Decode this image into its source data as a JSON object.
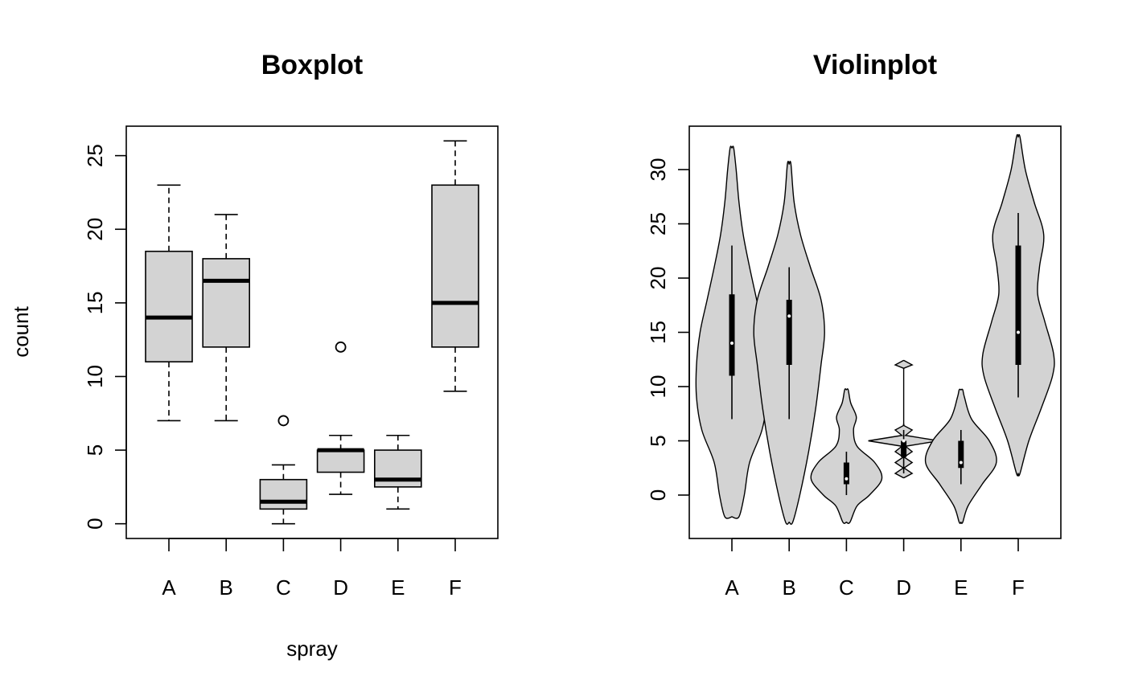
{
  "chart_data": [
    {
      "type": "boxplot",
      "title": "Boxplot",
      "xlabel": "spray",
      "ylabel": "count",
      "categories": [
        "A",
        "B",
        "C",
        "D",
        "E",
        "F"
      ],
      "yticks": [
        0,
        5,
        10,
        15,
        20,
        25
      ],
      "ylim": [
        -1,
        27
      ],
      "grid": false,
      "boxes": [
        {
          "name": "A",
          "min": 7,
          "q1": 11,
          "median": 14,
          "q3": 18.5,
          "max": 23,
          "outliers": []
        },
        {
          "name": "B",
          "min": 7,
          "q1": 12,
          "median": 16.5,
          "q3": 18,
          "max": 21,
          "outliers": []
        },
        {
          "name": "C",
          "min": 0,
          "q1": 1,
          "median": 1.5,
          "q3": 3,
          "max": 4,
          "outliers": [
            7
          ]
        },
        {
          "name": "D",
          "min": 2,
          "q1": 3.5,
          "median": 5,
          "q3": 5,
          "max": 6,
          "outliers": [
            12
          ]
        },
        {
          "name": "E",
          "min": 1,
          "q1": 2.5,
          "median": 3,
          "q3": 5,
          "max": 6,
          "outliers": []
        },
        {
          "name": "F",
          "min": 9,
          "q1": 12,
          "median": 15,
          "q3": 23,
          "max": 26,
          "outliers": []
        }
      ],
      "colors": {
        "fill": "#d3d3d3",
        "stroke": "#000000"
      }
    },
    {
      "type": "violin",
      "title": "Violinplot",
      "xlabel": "",
      "ylabel": "",
      "categories": [
        "A",
        "B",
        "C",
        "D",
        "E",
        "F"
      ],
      "yticks": [
        0,
        5,
        10,
        15,
        20,
        25,
        30
      ],
      "ylim": [
        -4,
        34
      ],
      "grid": false,
      "violins": [
        {
          "name": "A",
          "min": 7,
          "q1": 11,
          "median": 14,
          "q3": 18.5,
          "max": 23,
          "low": -2,
          "high": 32,
          "density": [
            [
              -2,
              0.2
            ],
            [
              0,
              0.35
            ],
            [
              3,
              0.5
            ],
            [
              6,
              0.85
            ],
            [
              9,
              1.0
            ],
            [
              12,
              1.0
            ],
            [
              15,
              0.9
            ],
            [
              18,
              0.7
            ],
            [
              21,
              0.5
            ],
            [
              24,
              0.32
            ],
            [
              27,
              0.2
            ],
            [
              30,
              0.12
            ],
            [
              32,
              0.05
            ]
          ]
        },
        {
          "name": "B",
          "min": 7,
          "q1": 12,
          "median": 16.5,
          "q3": 18,
          "max": 21,
          "low": -2.5,
          "high": 30.5,
          "density": [
            [
              -2.5,
              0.1
            ],
            [
              0,
              0.3
            ],
            [
              4,
              0.55
            ],
            [
              8,
              0.75
            ],
            [
              12,
              0.9
            ],
            [
              15,
              1.0
            ],
            [
              18,
              0.9
            ],
            [
              21,
              0.6
            ],
            [
              24,
              0.32
            ],
            [
              27,
              0.14
            ],
            [
              30.5,
              0.05
            ]
          ]
        },
        {
          "name": "C",
          "min": 0,
          "q1": 1,
          "median": 1.5,
          "q3": 3,
          "max": 4,
          "low": -2.5,
          "high": 9.7,
          "density": [
            [
              -2.5,
              0.1
            ],
            [
              -1,
              0.3
            ],
            [
              0,
              0.65
            ],
            [
              1.5,
              1.0
            ],
            [
              3,
              0.8
            ],
            [
              4.5,
              0.3
            ],
            [
              6,
              0.2
            ],
            [
              7.2,
              0.28
            ],
            [
              8.5,
              0.12
            ],
            [
              9.7,
              0.05
            ]
          ]
        },
        {
          "name": "D",
          "min": 2,
          "q1": 3.5,
          "median": 5,
          "q3": 5,
          "max": 6,
          "low": 2,
          "high": 12,
          "density": [
            [
              1.6,
              0.01
            ],
            [
              2,
              0.24
            ],
            [
              2.5,
              0.01
            ],
            [
              3,
              0.24
            ],
            [
              3.5,
              0.01
            ],
            [
              4,
              0.24
            ],
            [
              4.5,
              0.05
            ],
            [
              5,
              1.0
            ],
            [
              5.5,
              0.05
            ],
            [
              6,
              0.24
            ],
            [
              6.4,
              0.01
            ],
            [
              6.6,
              0.0
            ],
            [
              11.6,
              0.0
            ],
            [
              11.7,
              0.01
            ],
            [
              12,
              0.24
            ],
            [
              12.4,
              0.01
            ]
          ]
        },
        {
          "name": "E",
          "min": 1,
          "q1": 2.5,
          "median": 3,
          "q3": 5,
          "max": 6,
          "low": -2.5,
          "high": 9.7,
          "density": [
            [
              -2.5,
              0.05
            ],
            [
              -1,
              0.2
            ],
            [
              1,
              0.6
            ],
            [
              3,
              1.0
            ],
            [
              5,
              0.8
            ],
            [
              7,
              0.3
            ],
            [
              9,
              0.1
            ],
            [
              9.7,
              0.05
            ]
          ]
        },
        {
          "name": "F",
          "min": 9,
          "q1": 12,
          "median": 15,
          "q3": 23,
          "max": 26,
          "low": 2,
          "high": 33,
          "density": [
            [
              2,
              0.05
            ],
            [
              5,
              0.3
            ],
            [
              8,
              0.65
            ],
            [
              11,
              0.97
            ],
            [
              13,
              1.0
            ],
            [
              16,
              0.75
            ],
            [
              18.5,
              0.55
            ],
            [
              21,
              0.6
            ],
            [
              24,
              0.72
            ],
            [
              27,
              0.45
            ],
            [
              30,
              0.2
            ],
            [
              33,
              0.05
            ]
          ]
        }
      ],
      "colors": {
        "fill": "#d3d3d3",
        "stroke": "#000000",
        "median_dot": "#ffffff"
      }
    }
  ]
}
